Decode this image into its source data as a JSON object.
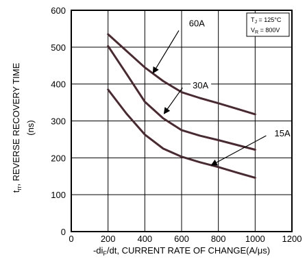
{
  "chart_data": {
    "type": "line",
    "title": "",
    "xlabel_prefix": "-di",
    "xlabel_sub": "F",
    "xlabel_suffix": "/dt, CURRENT RATE OF CHANGE(A/μs)",
    "ylabel_prefix": "t",
    "ylabel_sub": "rr",
    "ylabel_suffix": ", REVERSE RECOVERY TIME",
    "yunit": "(ns)",
    "xlim": [
      0,
      1200
    ],
    "ylim": [
      0,
      600
    ],
    "xticks": [
      "0",
      "200",
      "400",
      "600",
      "800",
      "1000",
      "1200"
    ],
    "yticks": [
      "0",
      "100",
      "200",
      "300",
      "400",
      "500",
      "600"
    ],
    "grid": true,
    "conditions": [
      {
        "prefix": "T",
        "sub": "J",
        "suffix": " = 125°C"
      },
      {
        "prefix": "V",
        "sub": "R",
        "suffix": " = 800V"
      }
    ],
    "series": [
      {
        "name": "60A",
        "x": [
          200,
          300,
          400,
          500,
          600,
          700,
          800,
          900,
          1000
        ],
        "y": [
          535,
          490,
          445,
          408,
          378,
          362,
          348,
          333,
          318
        ]
      },
      {
        "name": "30A",
        "x": [
          200,
          300,
          400,
          500,
          600,
          700,
          800,
          900,
          1000
        ],
        "y": [
          503,
          428,
          352,
          307,
          275,
          260,
          248,
          235,
          222
        ]
      },
      {
        "name": "15A",
        "x": [
          200,
          300,
          400,
          500,
          600,
          700,
          800,
          900,
          1000
        ],
        "y": [
          385,
          320,
          263,
          225,
          203,
          188,
          175,
          160,
          146
        ]
      }
    ],
    "annotations": [
      {
        "text": "60A",
        "label_at": [
          640,
          556
        ],
        "arrow_from": [
          585,
          545
        ],
        "arrow_to": [
          445,
          430
        ]
      },
      {
        "text": "30A",
        "label_at": [
          660,
          388
        ],
        "arrow_from": [
          605,
          390
        ],
        "arrow_to": [
          505,
          320
        ]
      },
      {
        "text": "15A",
        "label_at": [
          1105,
          258
        ],
        "arrow_from": [
          1060,
          260
        ],
        "arrow_to": [
          762,
          180
        ]
      }
    ]
  }
}
